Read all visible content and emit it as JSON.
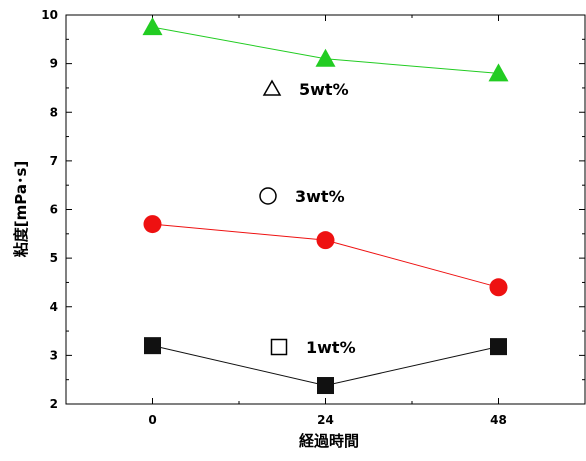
{
  "chart_data": {
    "type": "line",
    "xlabel": "経過時間",
    "ylabel": "粘度[mPa･s]",
    "x": [
      0,
      24,
      48
    ],
    "xlim": [
      -12,
      60
    ],
    "ylim": [
      2,
      10
    ],
    "xticks": [
      "0",
      "24",
      "48"
    ],
    "yticks": [
      "2",
      "3",
      "4",
      "5",
      "6",
      "7",
      "8",
      "9",
      "10"
    ],
    "grid": false,
    "series": [
      {
        "name": "5wt%",
        "values": [
          9.75,
          9.1,
          8.8
        ],
        "color": "#22cc22",
        "marker": "triangle"
      },
      {
        "name": "3wt%",
        "values": [
          5.7,
          5.37,
          4.4
        ],
        "color": "#ee1111",
        "marker": "circle"
      },
      {
        "name": "1wt%",
        "values": [
          3.2,
          2.38,
          3.18
        ],
        "color": "#111111",
        "marker": "square"
      }
    ]
  }
}
